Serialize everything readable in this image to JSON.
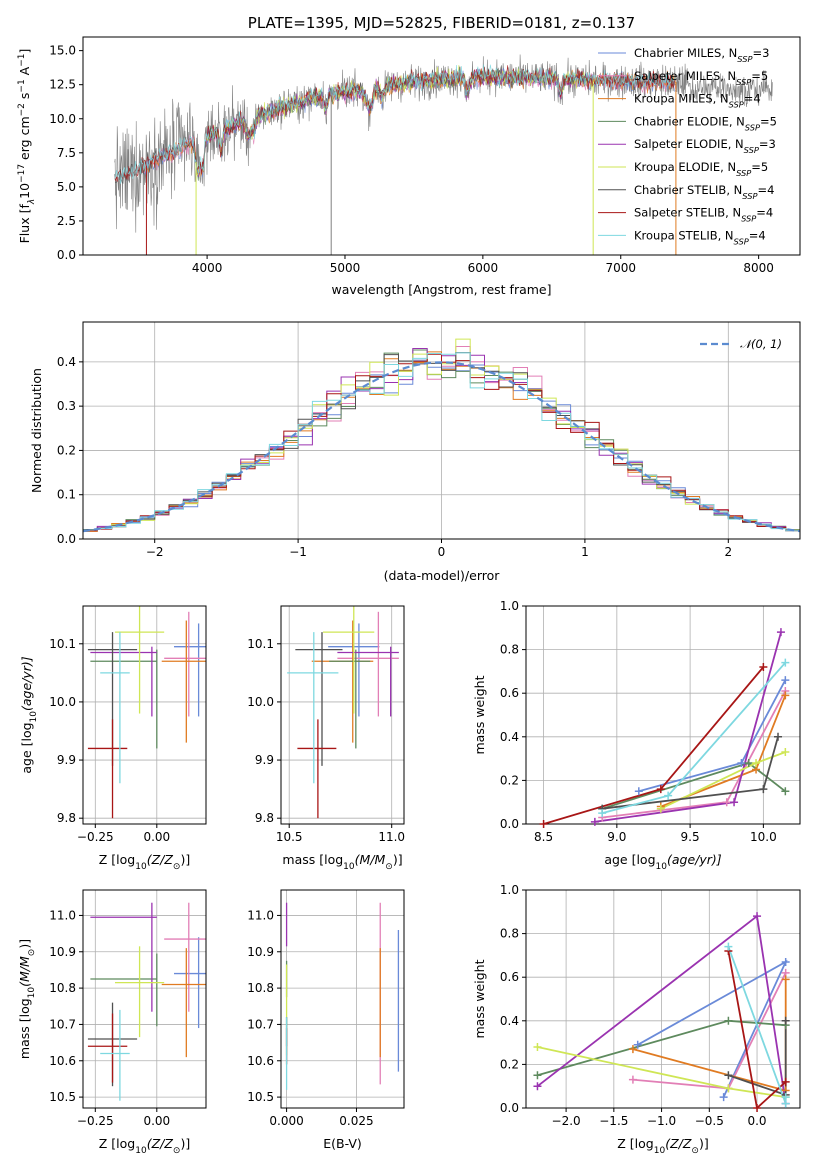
{
  "figure": {
    "title": "PLATE=1395, MJD=52825, FIBERID=0181, z=0.137"
  },
  "colors": {
    "chabrier_miles": "#6a8ad8",
    "salpeter_miles": "#e27fb6",
    "kroupa_miles": "#e07b22",
    "chabrier_elodie": "#5e8a5e",
    "salpeter_elodie": "#9a33b0",
    "kroupa_elodie": "#cfe655",
    "chabrier_stelib": "#505050",
    "salpeter_stelib": "#a81616",
    "kroupa_stelib": "#7ed8e0",
    "data": "#808080",
    "normal": "#5b8bd0"
  },
  "chart_data": [
    {
      "id": "spectrum",
      "type": "line",
      "xlabel": "wavelength [Angstrom, rest frame]",
      "ylabel_text": "Flux [f",
      "ylabel_sub": "λ",
      "ylabel_rest": "10",
      "ylabel_exp": "−17",
      "ylabel_unit": " erg cm",
      "ylabel_unit_exp1": "−2",
      "ylabel_unit2": " s",
      "ylabel_unit_exp2": "−1",
      "ylabel_unit3": " A",
      "ylabel_unit_exp3": "−1",
      "ylabel_end": "]",
      "xlim": [
        3100,
        8300
      ],
      "ylim": [
        0,
        16
      ],
      "xticks": [
        "4000",
        "5000",
        "6000",
        "7000",
        "8000"
      ],
      "yticks": [
        "0.0",
        "2.5",
        "5.0",
        "7.5",
        "10.0",
        "12.5",
        "15.0"
      ],
      "grid": false,
      "legend_placement": "right",
      "legend": [
        {
          "name": "Chabrier MILES, N",
          "sub": "SSP",
          "val": "=3",
          "color": "#6a8ad8"
        },
        {
          "name": "Salpeter MILES, N",
          "sub": "SSP",
          "val": "=5",
          "color": "#e27fb6"
        },
        {
          "name": "Kroupa MILES, N",
          "sub": "SSP",
          "val": "=4",
          "color": "#e07b22"
        },
        {
          "name": "Chabrier ELODIE, N",
          "sub": "SSP",
          "val": "=5",
          "color": "#5e8a5e"
        },
        {
          "name": "Salpeter ELODIE, N",
          "sub": "SSP",
          "val": "=3",
          "color": "#9a33b0"
        },
        {
          "name": "Kroupa ELODIE, N",
          "sub": "SSP",
          "val": "=5",
          "color": "#cfe655"
        },
        {
          "name": "Chabrier STELIB, N",
          "sub": "SSP",
          "val": "=4",
          "color": "#505050"
        },
        {
          "name": "Salpeter STELIB, N",
          "sub": "SSP",
          "val": "=4",
          "color": "#a81616"
        },
        {
          "name": "Kroupa STELIB, N",
          "sub": "SSP",
          "val": "=4",
          "color": "#7ed8e0"
        }
      ],
      "continuum": {
        "x": [
          3330,
          3450,
          3550,
          3650,
          3800,
          3950,
          4100,
          4300,
          4500,
          4800,
          5100,
          5400,
          5700,
          6000,
          6300,
          6600,
          6900,
          7200,
          7400
        ],
        "y": [
          5.6,
          6.0,
          6.5,
          7.1,
          7.8,
          8.6,
          9.2,
          10.0,
          10.7,
          11.6,
          12.1,
          12.6,
          12.9,
          13.1,
          13.0,
          12.9,
          12.8,
          12.7,
          12.7
        ]
      },
      "dropouts": [
        {
          "x": 3560,
          "color": "#a81616"
        },
        {
          "x": 3920,
          "color": "#cfe655"
        },
        {
          "x": 4900,
          "color": "#808080"
        },
        {
          "x": 6800,
          "color": "#cfe655"
        },
        {
          "x": 7400,
          "color": "#e07b22"
        }
      ]
    },
    {
      "id": "residuals",
      "type": "histogram",
      "xlabel": "(data-model)/error",
      "ylabel": "Normed distribution",
      "xlim": [
        -2.5,
        2.5
      ],
      "ylim": [
        0,
        0.49
      ],
      "xticks": [
        "−2",
        "−1",
        "0",
        "1",
        "2"
      ],
      "yticks": [
        "0.0",
        "0.1",
        "0.2",
        "0.3",
        "0.4"
      ],
      "grid": true,
      "legend_placement": "top-right",
      "legend_label": "𝒩(0, 1)",
      "bin_width": 0.1,
      "bin_start": -2.5
    },
    {
      "id": "age_vs_z",
      "type": "errorbar",
      "xlabel": "Z [log",
      "xlabel_sub": "10",
      "xlabel_rest": "(Z/Z",
      "xlabel_sun": "⊙",
      "xlabel_end": ")]",
      "ylabel": "age  [log",
      "ylabel_sub": "10",
      "ylabel_rest": "(age/yr)]",
      "xlim": [
        -0.3,
        0.2
      ],
      "ylim": [
        9.79,
        10.165
      ],
      "xticks": [
        "−0.25",
        "0.00"
      ],
      "yticks": [
        "9.8",
        "9.9",
        "10.0",
        "10.1"
      ],
      "grid": true
    },
    {
      "id": "age_vs_mass",
      "type": "errorbar",
      "xlabel": "mass [log",
      "xlabel_sub": "10",
      "xlabel_rest": "(M/M",
      "xlabel_sun": "⊙",
      "xlabel_end": ")]",
      "xlim": [
        10.46,
        11.06
      ],
      "ylim": [
        9.79,
        10.165
      ],
      "xticks": [
        "10.5",
        "11.0"
      ],
      "yticks": [
        "9.8",
        "9.9",
        "10.0",
        "10.1"
      ],
      "grid": true
    },
    {
      "id": "weight_vs_age",
      "type": "line",
      "xlabel": "age  [log",
      "xlabel_sub": "10",
      "xlabel_rest": "(age/yr)]",
      "ylabel": "mass weight",
      "xlim": [
        8.38,
        10.25
      ],
      "ylim": [
        0,
        1
      ],
      "xticks": [
        "8.5",
        "9.0",
        "9.5",
        "10.0"
      ],
      "yticks": [
        "0.0",
        "0.2",
        "0.4",
        "0.6",
        "0.8",
        "1.0"
      ],
      "grid": true
    },
    {
      "id": "mass_vs_z",
      "type": "errorbar",
      "xlabel": "Z [log",
      "xlabel_sub": "10",
      "xlabel_rest": "(Z/Z",
      "xlabel_sun": "⊙",
      "xlabel_end": ")]",
      "ylabel": "mass [log",
      "ylabel_sub": "10",
      "ylabel_rest": "(M/M",
      "ylabel_sun": "⊙",
      "ylabel_end": ")]",
      "xlim": [
        -0.3,
        0.2
      ],
      "ylim": [
        10.47,
        11.07
      ],
      "xticks": [
        "−0.25",
        "0.00"
      ],
      "yticks": [
        "10.5",
        "10.6",
        "10.7",
        "10.8",
        "10.9",
        "11.0"
      ],
      "grid": true
    },
    {
      "id": "mass_vs_ebv",
      "type": "errorbar",
      "xlabel": "E(B-V)",
      "xlim": [
        -0.002,
        0.042
      ],
      "ylim": [
        10.47,
        11.07
      ],
      "xticks": [
        "0.000",
        "0.025"
      ],
      "yticks": [
        "10.5",
        "10.6",
        "10.7",
        "10.8",
        "10.9",
        "11.0"
      ],
      "grid": true
    },
    {
      "id": "weight_vs_z",
      "type": "line",
      "xlabel": "Z [log",
      "xlabel_sub": "10",
      "xlabel_rest": "(Z/Z",
      "xlabel_sun": "⊙",
      "xlabel_end": ")]",
      "ylabel": "mass weight",
      "xlim": [
        -2.42,
        0.45
      ],
      "ylim": [
        0,
        1
      ],
      "xticks": [
        "−2.0",
        "−1.5",
        "−1.0",
        "−0.5",
        "0.0"
      ],
      "yticks": [
        "0.0",
        "0.2",
        "0.4",
        "0.6",
        "0.8",
        "1.0"
      ],
      "grid": true
    }
  ],
  "models": [
    {
      "key": "chabrier_miles",
      "z": 0.17,
      "zerr": [
        0.1,
        0.05
      ],
      "age": 10.095,
      "ageerr": [
        0.12,
        0.04
      ],
      "mass": 10.84,
      "merr": [
        0.15,
        0.1
      ],
      "ebv": 0.04,
      "ebverr": [
        0.27,
        0.12
      ],
      "w_age": [
        [
          9.15,
          0.15
        ],
        [
          9.85,
          0.28
        ],
        [
          10.15,
          0.66
        ]
      ],
      "w_z": [
        [
          -1.25,
          0.29
        ],
        [
          0.3,
          0.67
        ],
        [
          -0.35,
          0.05
        ]
      ]
    },
    {
      "key": "salpeter_miles",
      "z": 0.13,
      "zerr": [
        0.1,
        0.08
      ],
      "age": 10.075,
      "ageerr": [
        0.1,
        0.08
      ],
      "mass": 10.935,
      "merr": [
        0.2,
        0.1
      ],
      "ebv": 0.0335,
      "ebverr": [
        0.4,
        0.1
      ],
      "w_age": [
        [
          8.9,
          0.03
        ],
        [
          9.75,
          0.1
        ],
        [
          10.15,
          0.61
        ]
      ],
      "w_z": [
        [
          -1.3,
          0.13
        ],
        [
          -0.3,
          0.09
        ],
        [
          0.3,
          0.62
        ]
      ]
    },
    {
      "key": "kroupa_miles",
      "z": 0.12,
      "zerr": [
        0.1,
        0.08
      ],
      "age": 10.07,
      "ageerr": [
        0.14,
        0.07
      ],
      "mass": 10.81,
      "merr": [
        0.2,
        0.1
      ],
      "ebv": 0.0335,
      "ebverr": [
        0.2,
        0.1
      ],
      "w_age": [
        [
          9.3,
          0.08
        ],
        [
          9.95,
          0.25
        ],
        [
          10.15,
          0.59
        ]
      ],
      "w_z": [
        [
          -1.3,
          0.27
        ],
        [
          0.3,
          0.08
        ],
        [
          0.3,
          0.59
        ]
      ]
    },
    {
      "key": "chabrier_elodie",
      "z": 0.0,
      "zerr": [
        0.27,
        0.0
      ],
      "age": 10.07,
      "ageerr": [
        0.15,
        0.02
      ],
      "mass": 10.825,
      "merr": [
        0.13,
        0.07
      ],
      "ebv": 0.0,
      "ebverr": [
        0.05,
        0.05
      ],
      "w_age": [
        [
          8.9,
          0.07
        ],
        [
          9.9,
          0.28
        ],
        [
          10.15,
          0.15
        ]
      ],
      "w_z": [
        [
          -2.3,
          0.15
        ],
        [
          -0.3,
          0.4
        ],
        [
          0.3,
          0.38
        ]
      ]
    },
    {
      "key": "salpeter_elodie",
      "z": -0.02,
      "zerr": [
        0.25,
        0.02
      ],
      "age": 10.085,
      "ageerr": [
        0.11,
        0.01
      ],
      "mass": 10.995,
      "merr": [
        0.26,
        0.04
      ],
      "ebv": 0.0,
      "ebverr": [
        0.08,
        0.04
      ],
      "w_age": [
        [
          8.85,
          0.01
        ],
        [
          9.8,
          0.1
        ],
        [
          10.12,
          0.88
        ]
      ],
      "w_z": [
        [
          -2.3,
          0.1
        ],
        [
          0.0,
          0.88
        ],
        [
          0.3,
          0.02
        ]
      ]
    },
    {
      "key": "kroupa_elodie",
      "z": -0.07,
      "zerr": [
        0.1,
        0.1
      ],
      "age": 10.12,
      "ageerr": [
        0.14,
        0.05
      ],
      "mass": 10.815,
      "merr": [
        0.15,
        0.1
      ],
      "ebv": 0.0,
      "ebverr": [
        0.2,
        0.05
      ],
      "w_age": [
        [
          9.3,
          0.07
        ],
        [
          9.95,
          0.28
        ],
        [
          10.15,
          0.33
        ]
      ],
      "w_z": [
        [
          -2.3,
          0.28
        ],
        [
          -0.3,
          0.09
        ],
        [
          0.3,
          0.05
        ]
      ]
    },
    {
      "key": "chabrier_stelib",
      "z": -0.18,
      "zerr": [
        0.1,
        0.1
      ],
      "age": 10.09,
      "ageerr": [
        0.2,
        0.03
      ],
      "mass": 10.66,
      "merr": [
        0.13,
        0.1
      ],
      "ebv": 0.0,
      "ebverr": [
        0.02,
        0.06
      ],
      "w_age": [
        [
          8.9,
          0.07
        ],
        [
          10.0,
          0.16
        ],
        [
          10.1,
          0.4
        ]
      ],
      "w_z": [
        [
          -0.3,
          0.15
        ],
        [
          0.3,
          0.06
        ],
        [
          0.3,
          0.4
        ]
      ]
    },
    {
      "key": "salpeter_stelib",
      "z": -0.18,
      "zerr": [
        0.1,
        0.06
      ],
      "age": 9.92,
      "ageerr": [
        0.12,
        0.05
      ],
      "mass": 10.64,
      "merr": [
        0.1,
        0.09
      ],
      "ebv": 0.0,
      "ebverr": [
        0.05,
        0.05
      ],
      "w_age": [
        [
          8.5,
          0.0
        ],
        [
          9.3,
          0.16
        ],
        [
          10.0,
          0.72
        ]
      ],
      "w_z": [
        [
          -0.3,
          0.72
        ],
        [
          0.0,
          0.0
        ],
        [
          0.3,
          0.12
        ]
      ]
    },
    {
      "key": "kroupa_stelib",
      "z": -0.15,
      "zerr": [
        0.08,
        0.04
      ],
      "age": 10.05,
      "ageerr": [
        0.19,
        0.07
      ],
      "mass": 10.62,
      "merr": [
        0.13,
        0.12
      ],
      "ebv": 0.0,
      "ebverr": [
        0.1,
        0.1
      ],
      "w_age": [
        [
          8.9,
          0.05
        ],
        [
          9.35,
          0.13
        ],
        [
          10.15,
          0.74
        ]
      ],
      "w_z": [
        [
          -0.3,
          0.74
        ],
        [
          0.3,
          0.02
        ],
        [
          0.3,
          0.05
        ]
      ]
    }
  ]
}
